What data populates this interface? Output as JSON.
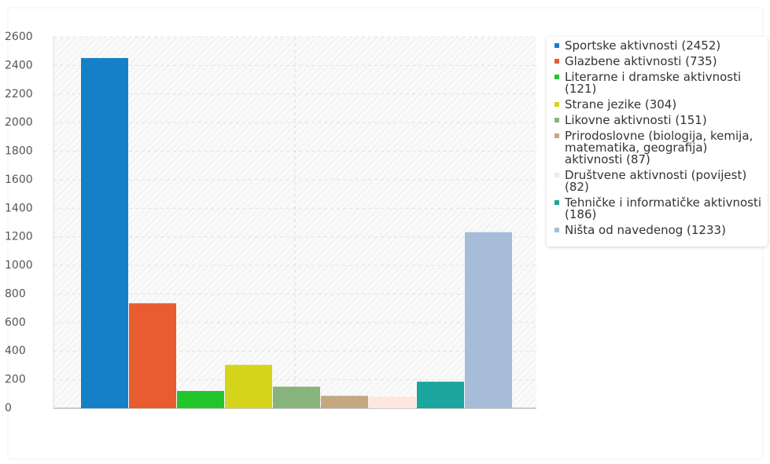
{
  "chart_data": {
    "type": "bar",
    "categories": [
      null
    ],
    "series": [
      {
        "name": "Sportske  aktivnosti (2452)",
        "color": "#1580c8",
        "values": [
          2452
        ]
      },
      {
        "name": "Glazbene aktivnosti (735)",
        "color": "#e85c30",
        "values": [
          735
        ]
      },
      {
        "name": "Literarne i dramske aktivnosti (121)",
        "color": "#22c52a",
        "values": [
          121
        ]
      },
      {
        "name": "Strane jezike (304)",
        "color": "#d4d41c",
        "values": [
          304
        ]
      },
      {
        "name": "Likovne aktivnosti (151)",
        "color": "#86b47c",
        "values": [
          151
        ]
      },
      {
        "name": "Prirodoslovne (biologija, kemija, matematika, geografija) aktivnosti (87)",
        "color": "#c4a882",
        "values": [
          87
        ]
      },
      {
        "name": "Društvene  aktivnosti (povijest) (82)",
        "color": "#fde6de",
        "values": [
          82
        ]
      },
      {
        "name": "Tehničke i informatičke aktivnosti (186)",
        "color": "#1aa69c",
        "values": [
          186
        ]
      },
      {
        "name": "Ništa od navedenog (1233)",
        "color": "#a6bcd8",
        "values": [
          1233
        ]
      }
    ],
    "ylim": [
      0,
      2600
    ],
    "yticks": [
      0,
      200,
      400,
      600,
      800,
      1000,
      1200,
      1400,
      1600,
      1800,
      2000,
      2200,
      2400,
      2600
    ],
    "grid": true
  }
}
